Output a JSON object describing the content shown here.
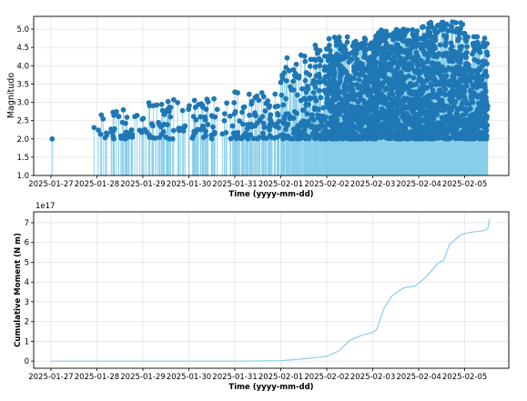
{
  "chart_data": [
    {
      "type": "scatter",
      "xlabel": "Time (yyyy-mm-dd)",
      "ylabel": "Magnitudo",
      "xlim": [
        "2025-01-26 15:00",
        "2025-02-05 23:00"
      ],
      "ylim": [
        1.0,
        5.35
      ],
      "yticks": [
        "1.0",
        "1.5",
        "2.0",
        "2.5",
        "3.0",
        "3.5",
        "4.0",
        "4.5",
        "5.0"
      ],
      "xticks": [
        "2025-01-27",
        "2025-01-28",
        "2025-01-29",
        "2025-01-30",
        "2025-01-31",
        "2025-02-01",
        "2025-02-02",
        "2025-02-03",
        "2025-02-04",
        "2025-02-05"
      ],
      "baseline": 1.0,
      "grid": true,
      "colors": {
        "stem": "#87ceeb",
        "marker": "#1f77b4"
      },
      "density_profile": [
        {
          "start": "2025-01-27 00:00",
          "end": "2025-01-27 01:00",
          "count": 1,
          "min": 2.0,
          "max": 2.0
        },
        {
          "start": "2025-01-27 22:00",
          "end": "2025-01-28 23:00",
          "count": 40,
          "min": 2.0,
          "max": 2.8
        },
        {
          "start": "2025-01-28 23:00",
          "end": "2025-01-30 23:00",
          "count": 95,
          "min": 2.0,
          "max": 3.1
        },
        {
          "start": "2025-01-30 23:00",
          "end": "2025-01-31 23:00",
          "count": 85,
          "min": 2.0,
          "max": 3.3
        },
        {
          "start": "2025-01-31 23:00",
          "end": "2025-02-01 12:00",
          "count": 70,
          "min": 2.0,
          "max": 4.3
        },
        {
          "start": "2025-02-01 12:00",
          "end": "2025-02-02 00:00",
          "count": 120,
          "min": 2.0,
          "max": 4.6
        },
        {
          "start": "2025-02-02 00:00",
          "end": "2025-02-03 00:00",
          "count": 600,
          "min": 2.0,
          "max": 4.8
        },
        {
          "start": "2025-02-03 00:00",
          "end": "2025-02-04 00:00",
          "count": 650,
          "min": 2.0,
          "max": 5.0
        },
        {
          "start": "2025-02-04 00:00",
          "end": "2025-02-05 00:00",
          "count": 600,
          "min": 2.0,
          "max": 5.2
        },
        {
          "start": "2025-02-05 00:00",
          "end": "2025-02-05 12:00",
          "count": 260,
          "min": 2.0,
          "max": 4.8
        }
      ]
    },
    {
      "type": "line",
      "xlabel": "Time (yyyy-mm-dd)",
      "ylabel": "Cumulative Moment (N m)",
      "exponent_label": "1e17",
      "xlim": [
        "2025-01-26 15:00",
        "2025-02-05 23:00"
      ],
      "ylim": [
        -0.36,
        7.55
      ],
      "yticks": [
        "0",
        "1",
        "2",
        "3",
        "4",
        "5",
        "6",
        "7"
      ],
      "xticks": [
        "2025-01-27",
        "2025-01-28",
        "2025-01-29",
        "2025-01-30",
        "2025-01-31",
        "2025-02-01",
        "2025-02-02",
        "2025-02-03",
        "2025-02-04",
        "2025-02-05"
      ],
      "grid": true,
      "color": "#87ceeb",
      "series": [
        {
          "x": [
            "2025-01-27 00:00",
            "2025-01-28 00:00",
            "2025-01-29 00:00",
            "2025-01-30 00:00",
            "2025-01-31 00:00",
            "2025-02-01 00:00",
            "2025-02-01 12:00",
            "2025-02-01 18:00",
            "2025-02-02 00:00",
            "2025-02-02 06:00",
            "2025-02-02 12:00",
            "2025-02-02 18:00",
            "2025-02-03 00:00",
            "2025-02-03 02:00",
            "2025-02-03 06:00",
            "2025-02-03 10:00",
            "2025-02-03 16:00",
            "2025-02-03 22:00",
            "2025-02-04 02:00",
            "2025-02-04 06:00",
            "2025-02-04 10:00",
            "2025-02-04 13:00",
            "2025-02-04 16:00",
            "2025-02-04 22:00",
            "2025-02-05 02:00",
            "2025-02-05 06:00",
            "2025-02-05 10:00",
            "2025-02-05 12:00",
            "2025-02-05 13:00"
          ],
          "y": [
            0.0,
            0.0,
            0.0,
            0.0,
            0.0,
            0.02,
            0.12,
            0.18,
            0.25,
            0.5,
            1.05,
            1.3,
            1.45,
            1.6,
            2.7,
            3.3,
            3.7,
            3.8,
            4.1,
            4.5,
            4.95,
            5.1,
            5.9,
            6.4,
            6.5,
            6.55,
            6.6,
            6.7,
            7.2
          ]
        }
      ]
    }
  ]
}
